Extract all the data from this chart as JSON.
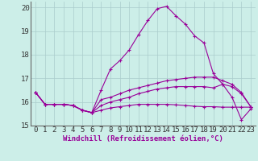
{
  "title": "",
  "xlabel": "Windchill (Refroidissement éolien,°C)",
  "bg_color": "#cceee8",
  "grid_color": "#aacccc",
  "line_color": "#990099",
  "xlim": [
    -0.5,
    23.5
  ],
  "ylim": [
    15,
    20.25
  ],
  "yticks": [
    15,
    16,
    17,
    18,
    19,
    20
  ],
  "xticks": [
    0,
    1,
    2,
    3,
    4,
    5,
    6,
    7,
    8,
    9,
    10,
    11,
    12,
    13,
    14,
    15,
    16,
    17,
    18,
    19,
    20,
    21,
    22,
    23
  ],
  "lines": [
    [
      16.4,
      15.9,
      15.9,
      15.9,
      15.85,
      15.65,
      15.55,
      16.5,
      17.4,
      17.75,
      18.2,
      18.85,
      19.45,
      19.95,
      20.05,
      19.65,
      19.3,
      18.8,
      18.5,
      17.2,
      16.75,
      16.2,
      15.25,
      15.7
    ],
    [
      16.4,
      15.9,
      15.9,
      15.9,
      15.85,
      15.65,
      15.55,
      16.1,
      16.2,
      16.35,
      16.5,
      16.6,
      16.7,
      16.8,
      16.9,
      16.95,
      17.0,
      17.05,
      17.05,
      17.05,
      16.9,
      16.75,
      16.4,
      15.8
    ],
    [
      16.4,
      15.9,
      15.9,
      15.9,
      15.85,
      15.65,
      15.55,
      15.85,
      16.0,
      16.1,
      16.2,
      16.35,
      16.45,
      16.55,
      16.6,
      16.65,
      16.65,
      16.65,
      16.65,
      16.6,
      16.75,
      16.65,
      16.35,
      15.8
    ],
    [
      16.4,
      15.9,
      15.9,
      15.9,
      15.85,
      15.65,
      15.55,
      15.65,
      15.75,
      15.8,
      15.85,
      15.9,
      15.9,
      15.9,
      15.9,
      15.88,
      15.85,
      15.82,
      15.8,
      15.8,
      15.78,
      15.78,
      15.78,
      15.78
    ]
  ],
  "xlabel_fontsize": 6.5,
  "tick_fontsize": 6.5
}
